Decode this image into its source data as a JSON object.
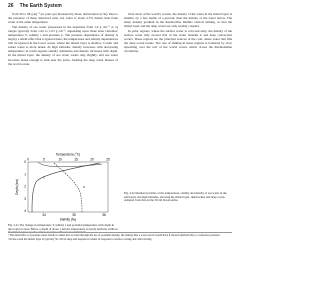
{
  "header": {
    "page": "26",
    "title": "The Earth System"
  },
  "left_text": [
    "from 30 to 38 g kg⁻¹ (or parts per thousand by mass, abbreviated as ‰). Due to the presence of these dissolved salts, sea water is about 2.5% denser than fresh water at the same temperature.",
    "The density of sea water (expressed in the departure from 1.0 g cm⁻³ or σ) ranges typically from 1.02 to 1.03 g cm⁻³, depending upon three state variables: temperature T, salinity s and pressure p. The pressure dependence of density is largely a small effect that is ignored here; the temperature and salinity dependences will be ignored in the lower ocean, where the mixed layer is shallow. Colder and saltier water is more dense. At high latitudes, density increases with decreasing temperature; in warm regions salinity dominates and density increases with depth. In the mixed layer, the density of sea water varies only slightly, and sea water becomes dense enough to sink near the poles, forming the deep water masses of the world ocean."
  ],
  "figure_1": {
    "axis_top": "Temperature (°C)",
    "ticks_top": [
      "0",
      "5",
      "10",
      "15",
      "20",
      "25"
    ],
    "axis_left": "Depth (km)",
    "ticks_left": [
      "0",
      "1",
      "2",
      "3",
      "4"
    ],
    "axis_bottom": "Salinity (‰)",
    "ticks_bottom": [
      "34",
      "35",
      "36"
    ],
    "curve_labels": [
      "T",
      "s"
    ]
  },
  "caption_1": "Fig. 2.21 The change in temperature T, salinity s and potential temperature with depth in the tropical ocean. Below a depth of about 1 km the temperature is nearly uniform, while in the mixed layer near the surface it varies with season and latitude.",
  "right_text": [
    "Over most of the world's oceans, the density of the water in the mixed layer is smaller, by a few tenths of a percent, than the density of the water below. The sharp density gradient in the thermocline inhibits vertical mixing, so that the mixed layer and the deep ocean are only weakly coupled.",
    "In polar regions, where the surface water is cold and salty, the density of the surface water may exceed that of the water beneath it and deep convection occurs. These regions are the principal sources of the cold, dense water that fills the deep ocean basins. The rate of sinking in these regions is balanced by slow upwelling over the rest of the world ocean, which closes the thermohaline circulation."
  ],
  "caption_2": "Fig. 2.22 Idealized profiles of the temperature, salinity and density of sea water in the subtropics and high latitudes, showing the mixed layer, thermocline and deep ocean. Adapted from data in the World Ocean Atlas.",
  "footnotes": [
    "¹ The small effect of pressure upon density is taken into account through the use of potential density, the density that a water parcel would have if moved adiabatically to a reference pressure.",
    "² In the ocean the mixed layer is typically 50–100 m deep and deepens in winter in response to surface cooling and wind stirring."
  ]
}
